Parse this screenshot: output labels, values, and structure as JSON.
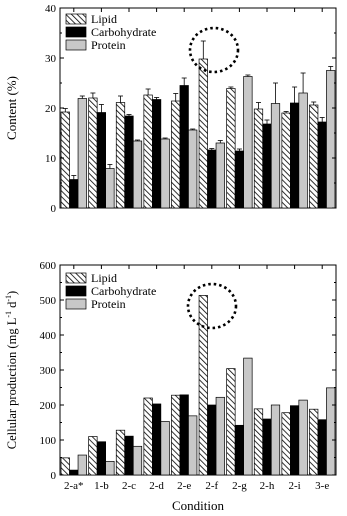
{
  "chart_data": [
    {
      "type": "bar",
      "panel": "top",
      "categories": [
        "2-a*",
        "1-b",
        "2-c",
        "2-d",
        "2-e",
        "2-f",
        "2-g",
        "2-h",
        "2-i",
        "3-e"
      ],
      "ylabel": "Content (%)",
      "ylim": [
        0,
        40
      ],
      "yticks": [
        "0",
        "10",
        "20",
        "30",
        "40"
      ],
      "legend_position": "top-left",
      "highlight": "2-f",
      "series": [
        {
          "name": "Lipid",
          "pattern": "hatch",
          "color": "#ffffff",
          "values": [
            19.2,
            22.0,
            21.1,
            22.6,
            21.4,
            29.8,
            23.9,
            19.8,
            19.0,
            20.6
          ],
          "errors": [
            0.7,
            1.0,
            1.3,
            1.2,
            1.5,
            3.6,
            0.3,
            1.3,
            0.3,
            0.6
          ]
        },
        {
          "name": "Carbohydrate",
          "pattern": "solid",
          "color": "#000000",
          "values": [
            5.7,
            19.1,
            18.4,
            21.7,
            24.5,
            11.6,
            11.4,
            16.8,
            21.0,
            17.2
          ],
          "errors": [
            0.8,
            1.6,
            0.3,
            0.4,
            1.5,
            0.3,
            0.4,
            0.8,
            3.2,
            0.9
          ]
        },
        {
          "name": "Protein",
          "pattern": "solid",
          "color": "#c8c8c8",
          "values": [
            21.9,
            7.9,
            13.4,
            13.8,
            15.6,
            13.0,
            26.3,
            20.9,
            23.0,
            27.5
          ],
          "errors": [
            0.5,
            0.8,
            0.2,
            0.2,
            0.2,
            0.5,
            0.3,
            4.1,
            4.0,
            0.8
          ]
        }
      ]
    },
    {
      "type": "bar",
      "panel": "bottom",
      "categories": [
        "2-a*",
        "1-b",
        "2-c",
        "2-d",
        "2-e",
        "2-f",
        "2-g",
        "2-h",
        "2-i",
        "3-e"
      ],
      "xlabel": "Condition",
      "ylabel_main": "Cellular production (mg L",
      "ylabel_sup1": "-1",
      "ylabel_mid": " d",
      "ylabel_sup2": "-1",
      "ylabel_end": ")",
      "ylim": [
        0,
        600
      ],
      "yticks": [
        "0",
        "100",
        "200",
        "300",
        "400",
        "500",
        "600"
      ],
      "legend_position": "top-left",
      "highlight": "2-f",
      "series": [
        {
          "name": "Lipid",
          "pattern": "hatch",
          "color": "#ffffff",
          "values": [
            49,
            110,
            128,
            220,
            228,
            513,
            304,
            189,
            178,
            188
          ]
        },
        {
          "name": "Carbohydrate",
          "pattern": "solid",
          "color": "#000000",
          "values": [
            14,
            95,
            111,
            203,
            229,
            200,
            142,
            160,
            198,
            158
          ]
        },
        {
          "name": "Protein",
          "pattern": "solid",
          "color": "#c8c8c8",
          "values": [
            57,
            39,
            82,
            153,
            169,
            222,
            334,
            200,
            214,
            249
          ]
        }
      ]
    }
  ]
}
